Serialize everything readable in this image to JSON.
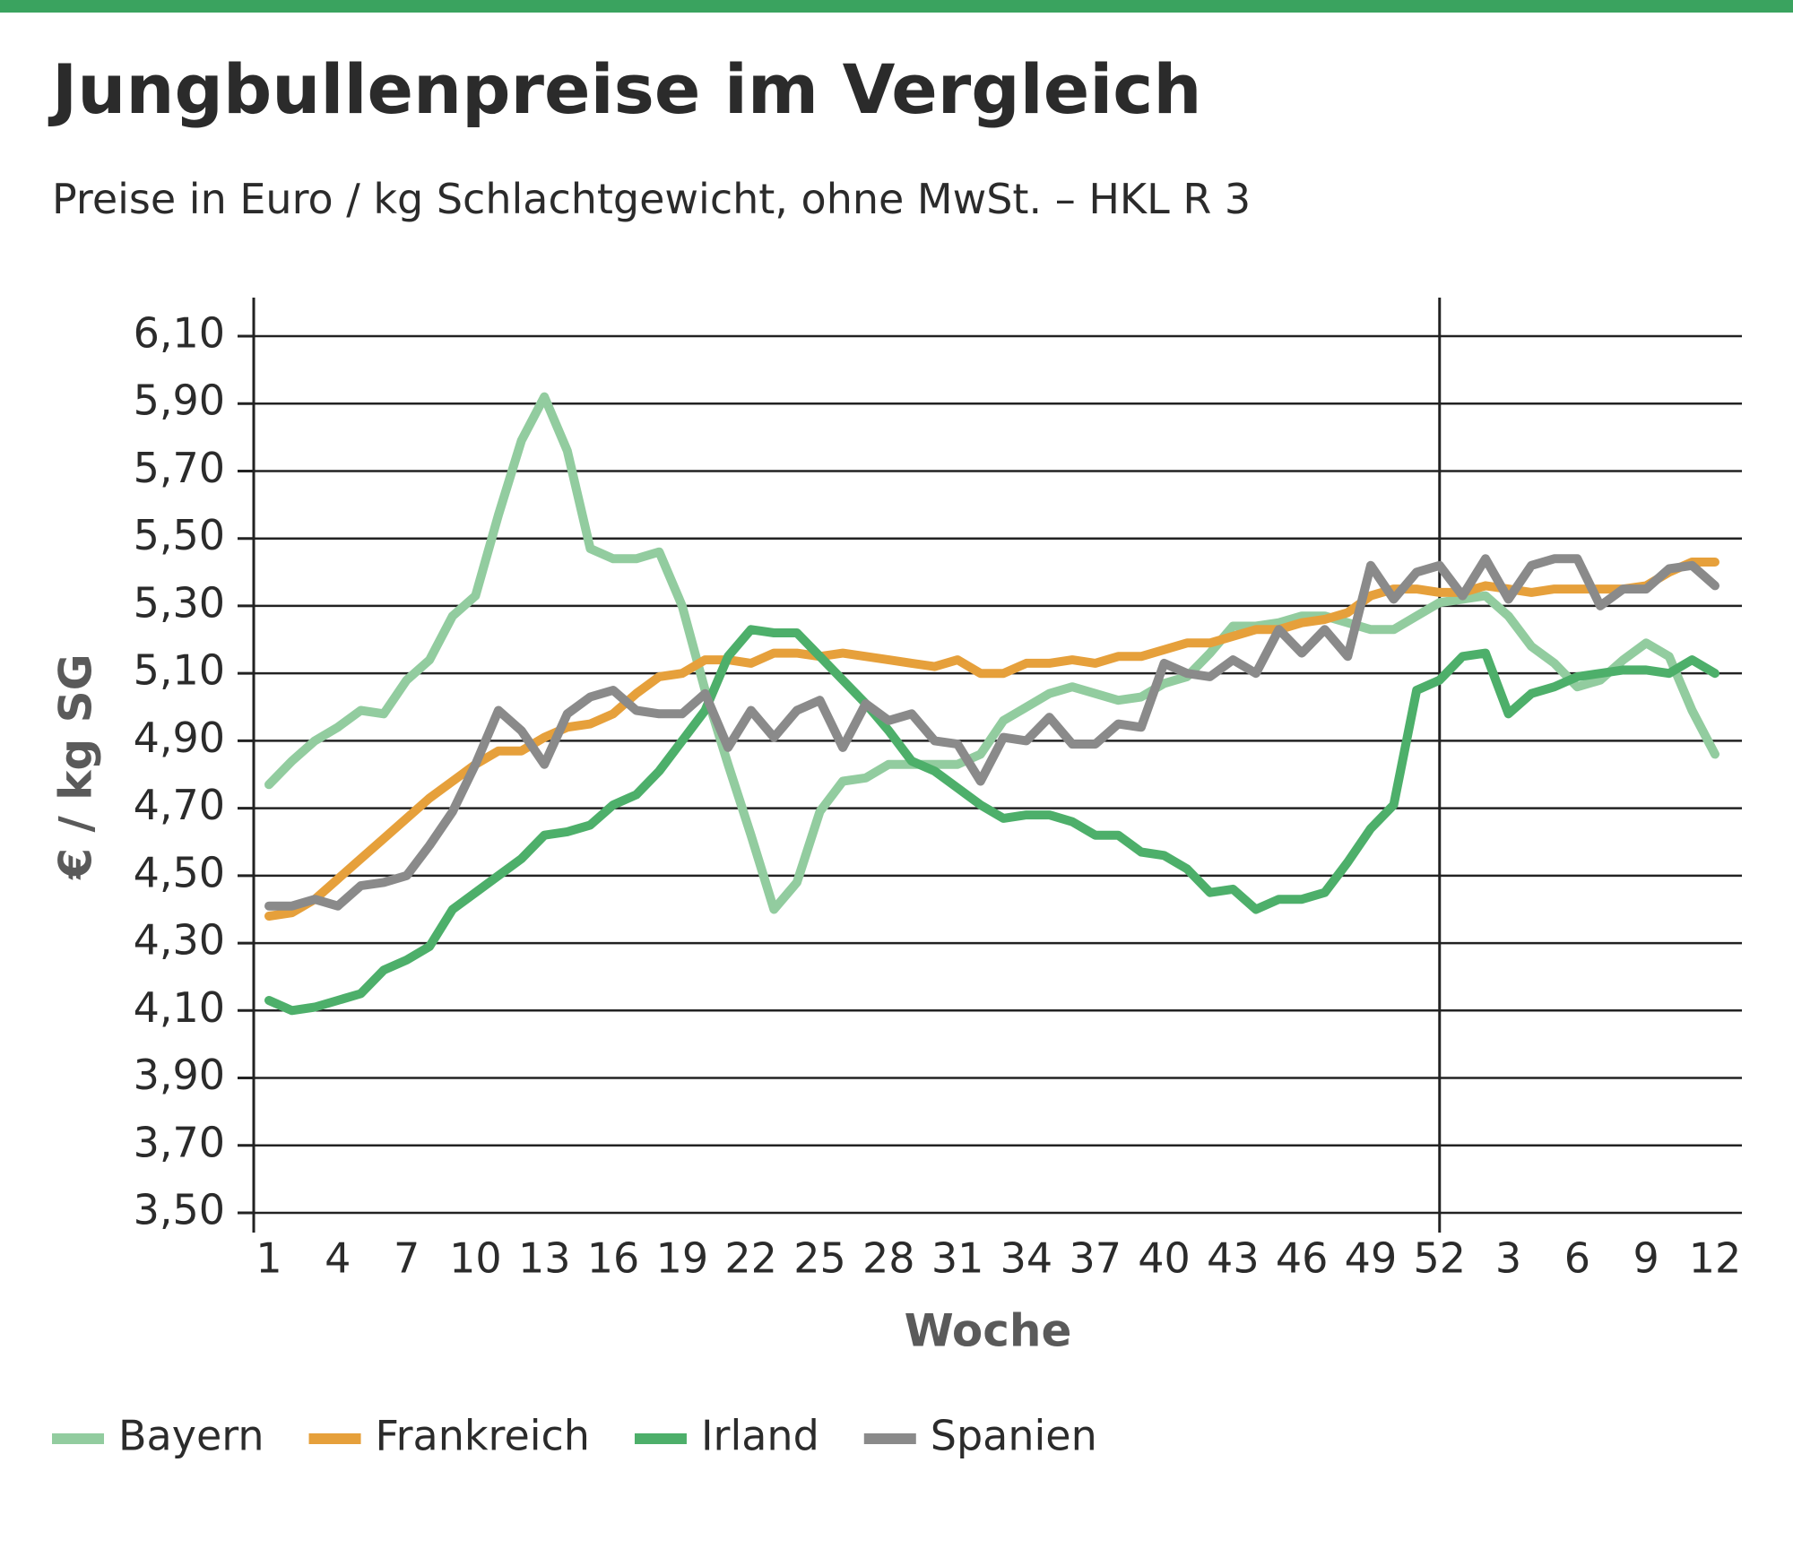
{
  "chart_data": {
    "type": "line",
    "title": "Jungbullenpreise im Vergleich",
    "subtitle": "Preise in Euro / kg Schlachtgewicht, ohne MwSt. – HKL R 3",
    "x_label": "Woche",
    "y_label": "€ / kg SG",
    "categories": [
      "1",
      null,
      null,
      "4",
      null,
      null,
      "7",
      null,
      null,
      "10",
      null,
      null,
      "13",
      null,
      null,
      "16",
      null,
      null,
      "19",
      null,
      null,
      "22",
      null,
      null,
      "25",
      null,
      null,
      "28",
      null,
      null,
      "31",
      null,
      null,
      "34",
      null,
      null,
      "37",
      null,
      null,
      "40",
      null,
      null,
      "43",
      null,
      null,
      "46",
      null,
      null,
      "49",
      null,
      null,
      "52",
      null,
      null,
      "3",
      null,
      null,
      "6",
      null,
      null,
      "9",
      null,
      null,
      "12"
    ],
    "ylim": [
      3.5,
      6.1
    ],
    "yticks": [
      {
        "value": 3.5,
        "label": "3,50"
      },
      {
        "value": 3.7,
        "label": "3,70"
      },
      {
        "value": 3.9,
        "label": "3,90"
      },
      {
        "value": 4.1,
        "label": "4,10"
      },
      {
        "value": 4.3,
        "label": "4,30"
      },
      {
        "value": 4.5,
        "label": "4,50"
      },
      {
        "value": 4.7,
        "label": "4,70"
      },
      {
        "value": 4.9,
        "label": "4,90"
      },
      {
        "value": 5.1,
        "label": "5,10"
      },
      {
        "value": 5.3,
        "label": "5,30"
      },
      {
        "value": 5.5,
        "label": "5,50"
      },
      {
        "value": 5.7,
        "label": "5,70"
      },
      {
        "value": 5.9,
        "label": "5,90"
      },
      {
        "value": 6.1,
        "label": "6,10"
      }
    ],
    "grid": true,
    "legend": "bottom",
    "series": [
      {
        "name": "Bayern",
        "color": "#92cc9f",
        "values": [
          4.77,
          4.84,
          4.9,
          4.94,
          4.99,
          4.98,
          5.08,
          5.14,
          5.27,
          5.33,
          5.57,
          5.79,
          5.92,
          5.76,
          5.47,
          5.44,
          5.44,
          5.46,
          5.3,
          5.05,
          4.83,
          4.62,
          4.4,
          4.48,
          4.69,
          4.78,
          4.79,
          4.83,
          4.83,
          4.83,
          4.83,
          4.86,
          4.96,
          5.0,
          5.04,
          5.06,
          5.04,
          5.02,
          5.03,
          5.07,
          5.09,
          5.16,
          5.24,
          5.24,
          5.25,
          5.27,
          5.27,
          5.25,
          5.23,
          5.23,
          5.27,
          5.31,
          5.32,
          5.33,
          5.27,
          5.18,
          5.13,
          5.06,
          5.08,
          5.14,
          5.19,
          5.15,
          4.99,
          4.86
        ]
      },
      {
        "name": "Frankreich",
        "color": "#e6a03b",
        "values": [
          4.38,
          4.39,
          4.43,
          4.49,
          4.55,
          4.61,
          4.67,
          4.73,
          4.78,
          4.83,
          4.87,
          4.87,
          4.91,
          4.94,
          4.95,
          4.98,
          5.04,
          5.09,
          5.1,
          5.14,
          5.14,
          5.13,
          5.16,
          5.16,
          5.15,
          5.16,
          5.15,
          5.14,
          5.13,
          5.12,
          5.14,
          5.1,
          5.1,
          5.13,
          5.13,
          5.14,
          5.13,
          5.15,
          5.15,
          5.17,
          5.19,
          5.19,
          5.21,
          5.23,
          5.23,
          5.25,
          5.26,
          5.28,
          5.33,
          5.35,
          5.35,
          5.34,
          5.34,
          5.36,
          5.35,
          5.34,
          5.35,
          5.35,
          5.35,
          5.35,
          5.36,
          5.4,
          5.43,
          5.43
        ]
      },
      {
        "name": "Irland",
        "color": "#4daf6a",
        "values": [
          4.13,
          4.1,
          4.11,
          4.13,
          4.15,
          4.22,
          4.25,
          4.29,
          4.4,
          4.45,
          4.5,
          4.55,
          4.62,
          4.63,
          4.65,
          4.71,
          4.74,
          4.81,
          4.9,
          4.99,
          5.15,
          5.23,
          5.22,
          5.22,
          5.15,
          5.08,
          5.01,
          4.93,
          4.84,
          4.81,
          4.76,
          4.71,
          4.67,
          4.68,
          4.68,
          4.66,
          4.62,
          4.62,
          4.57,
          4.56,
          4.52,
          4.45,
          4.46,
          4.4,
          4.43,
          4.43,
          4.45,
          4.54,
          4.64,
          4.71,
          5.05,
          5.08,
          5.15,
          5.16,
          4.98,
          5.04,
          5.06,
          5.09,
          5.1,
          5.11,
          5.11,
          5.1,
          5.14,
          5.1
        ]
      },
      {
        "name": "Spanien",
        "color": "#8a8a8a",
        "values": [
          4.41,
          4.41,
          4.43,
          4.41,
          4.47,
          4.48,
          4.5,
          4.59,
          4.69,
          4.83,
          4.99,
          4.93,
          4.83,
          4.98,
          5.03,
          5.05,
          4.99,
          4.98,
          4.98,
          5.04,
          4.88,
          4.99,
          4.91,
          4.99,
          5.02,
          4.88,
          5.01,
          4.96,
          4.98,
          4.9,
          4.89,
          4.78,
          4.91,
          4.9,
          4.97,
          4.89,
          4.89,
          4.95,
          4.94,
          5.13,
          5.1,
          5.09,
          5.14,
          5.1,
          5.23,
          5.16,
          5.23,
          5.15,
          5.42,
          5.32,
          5.4,
          5.42,
          5.33,
          5.44,
          5.32,
          5.42,
          5.44,
          5.44,
          5.3,
          5.35,
          5.35,
          5.41,
          5.42,
          5.36
        ]
      }
    ]
  }
}
